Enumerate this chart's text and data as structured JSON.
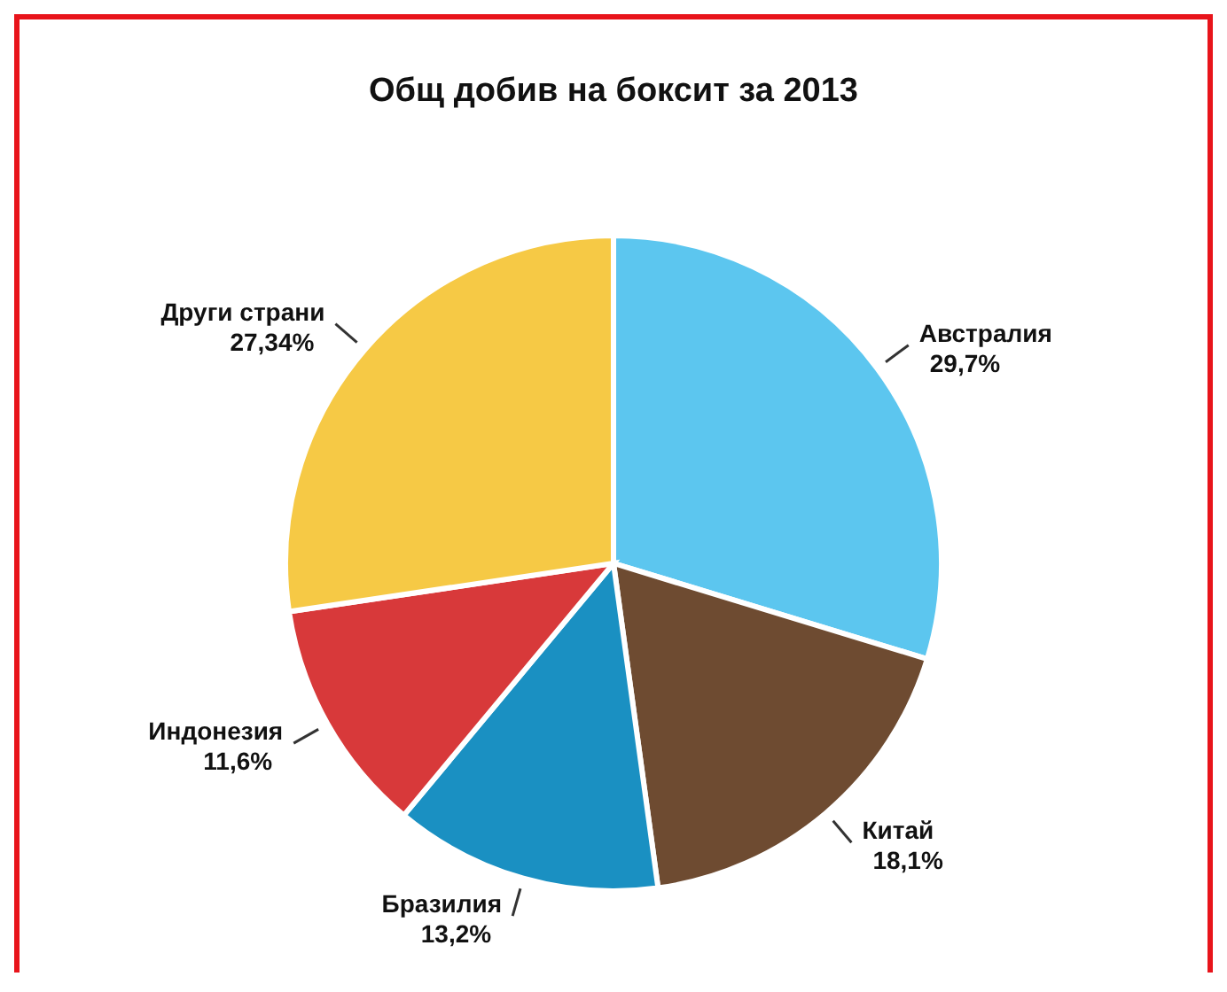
{
  "chart_data": {
    "type": "pie",
    "title": "Общ добив на боксит за 2013",
    "categories": [
      "Австралия",
      "Китай",
      "Бразилия",
      "Индонезия",
      "Други страни"
    ],
    "values": [
      29.7,
      18.1,
      13.2,
      11.6,
      27.34
    ],
    "value_labels": [
      "29,7%",
      "18,1%",
      "13,2%",
      "11,6%",
      "27,34%"
    ],
    "colors": [
      "#5cc6ef",
      "#6e4b31",
      "#1a90c2",
      "#d8393a",
      "#f6c945"
    ],
    "legend": false
  }
}
